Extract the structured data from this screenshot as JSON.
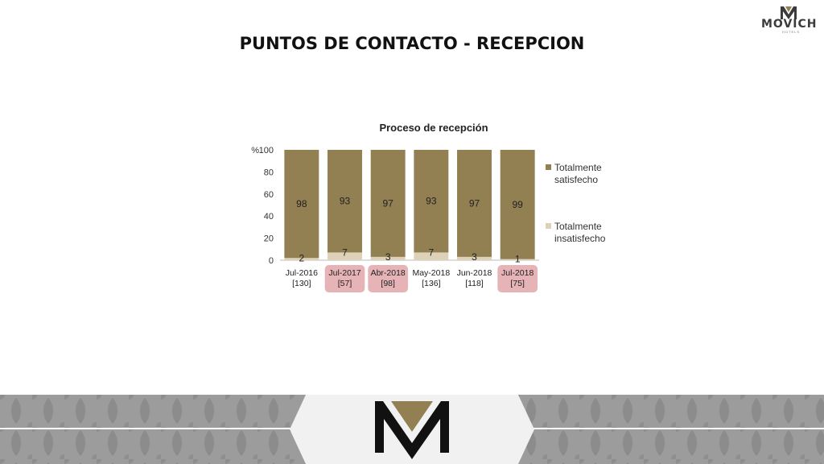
{
  "page": {
    "title": "PUNTOS DE CONTACTO - RECEPCION"
  },
  "brand": {
    "name": "MOVICH",
    "subtitle": "HOTELS"
  },
  "colors": {
    "satisfied": "#927f52",
    "unsatisfied": "#ddd2b7",
    "highlight": "#e6b3b7",
    "footer": "#9a9a9a"
  },
  "chart_data": {
    "type": "bar",
    "stacked": true,
    "title": "Proceso de recepción",
    "ylabel": "%",
    "ylim": [
      0,
      100
    ],
    "yticks": [
      "0",
      "20",
      "40",
      "60",
      "80",
      "100"
    ],
    "categories": [
      "Jul-2016",
      "Jul-2017",
      "Abr-2018",
      "May-2018",
      "Jun-2018",
      "Jul-2018"
    ],
    "sample_sizes": [
      "[130]",
      "[57]",
      "[98]",
      "[136]",
      "[118]",
      "[75]"
    ],
    "highlighted": [
      false,
      true,
      true,
      false,
      false,
      true
    ],
    "series": [
      {
        "name": "Totalmente insatisfecho",
        "values": [
          2,
          7,
          3,
          7,
          3,
          1
        ]
      },
      {
        "name": "Totalmente satisfecho",
        "values": [
          98,
          93,
          97,
          93,
          97,
          99
        ]
      }
    ],
    "legend": {
      "position": "right",
      "entries": [
        {
          "line1": "Totalmente",
          "line2": "satisfecho"
        },
        {
          "line1": "Totalmente",
          "line2": "insatisfecho"
        }
      ]
    }
  }
}
